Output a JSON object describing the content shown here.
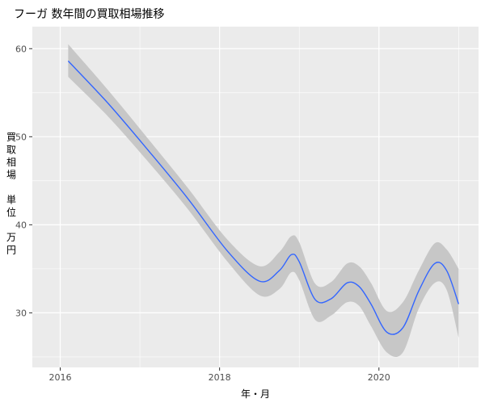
{
  "chart_data": {
    "type": "line",
    "title": "フーガ 数年間の買取相場推移",
    "xlabel": "年・月",
    "ylabel": "買取相場 単位 万円",
    "ylabel_lines": [
      "買",
      "取",
      "相",
      "場",
      "",
      "単",
      "位",
      "",
      "万",
      "円"
    ],
    "x_tick_labels": [
      "2016",
      "2018",
      "2020"
    ],
    "x_ticks": [
      2016.0,
      2018.0,
      2020.0
    ],
    "y_tick_labels": [
      "30",
      "40",
      "50",
      "60"
    ],
    "y_ticks": [
      30,
      40,
      50,
      60
    ],
    "xlim": [
      2015.65,
      2021.25
    ],
    "ylim": [
      23.8,
      62.5
    ],
    "grid": true,
    "smooth": true,
    "x": [
      2016.1,
      2016.6,
      2017.1,
      2017.6,
      2018.1,
      2018.5,
      2018.75,
      2018.9,
      2019.0,
      2019.2,
      2019.4,
      2019.6,
      2019.75,
      2019.9,
      2020.1,
      2020.3,
      2020.5,
      2020.7,
      2020.85,
      2021.0
    ],
    "series": [
      {
        "values": [
          58.6,
          53.8,
          48.5,
          43.0,
          37.0,
          33.6,
          34.8,
          36.6,
          35.8,
          31.5,
          31.6,
          33.4,
          33.0,
          31.0,
          27.8,
          28.3,
          32.5,
          35.6,
          34.8,
          31.0
        ],
        "ci_upper": [
          60.5,
          55.3,
          49.8,
          44.2,
          38.3,
          35.3,
          36.9,
          38.7,
          38.0,
          33.3,
          33.5,
          35.6,
          35.3,
          33.4,
          30.2,
          31.2,
          34.8,
          37.9,
          37.2,
          35.0
        ],
        "ci_lower": [
          56.8,
          52.3,
          47.2,
          41.8,
          35.8,
          32.0,
          32.7,
          34.6,
          33.7,
          29.2,
          29.7,
          31.2,
          30.8,
          28.5,
          25.5,
          25.5,
          30.5,
          33.4,
          32.6,
          27.2
        ]
      }
    ],
    "colors": {
      "line": "#3366FF",
      "ribbon": "#C7C7C7",
      "panel": "#EBEBEB",
      "grid": "#FFFFFF",
      "text": "#4D4D4D"
    }
  }
}
